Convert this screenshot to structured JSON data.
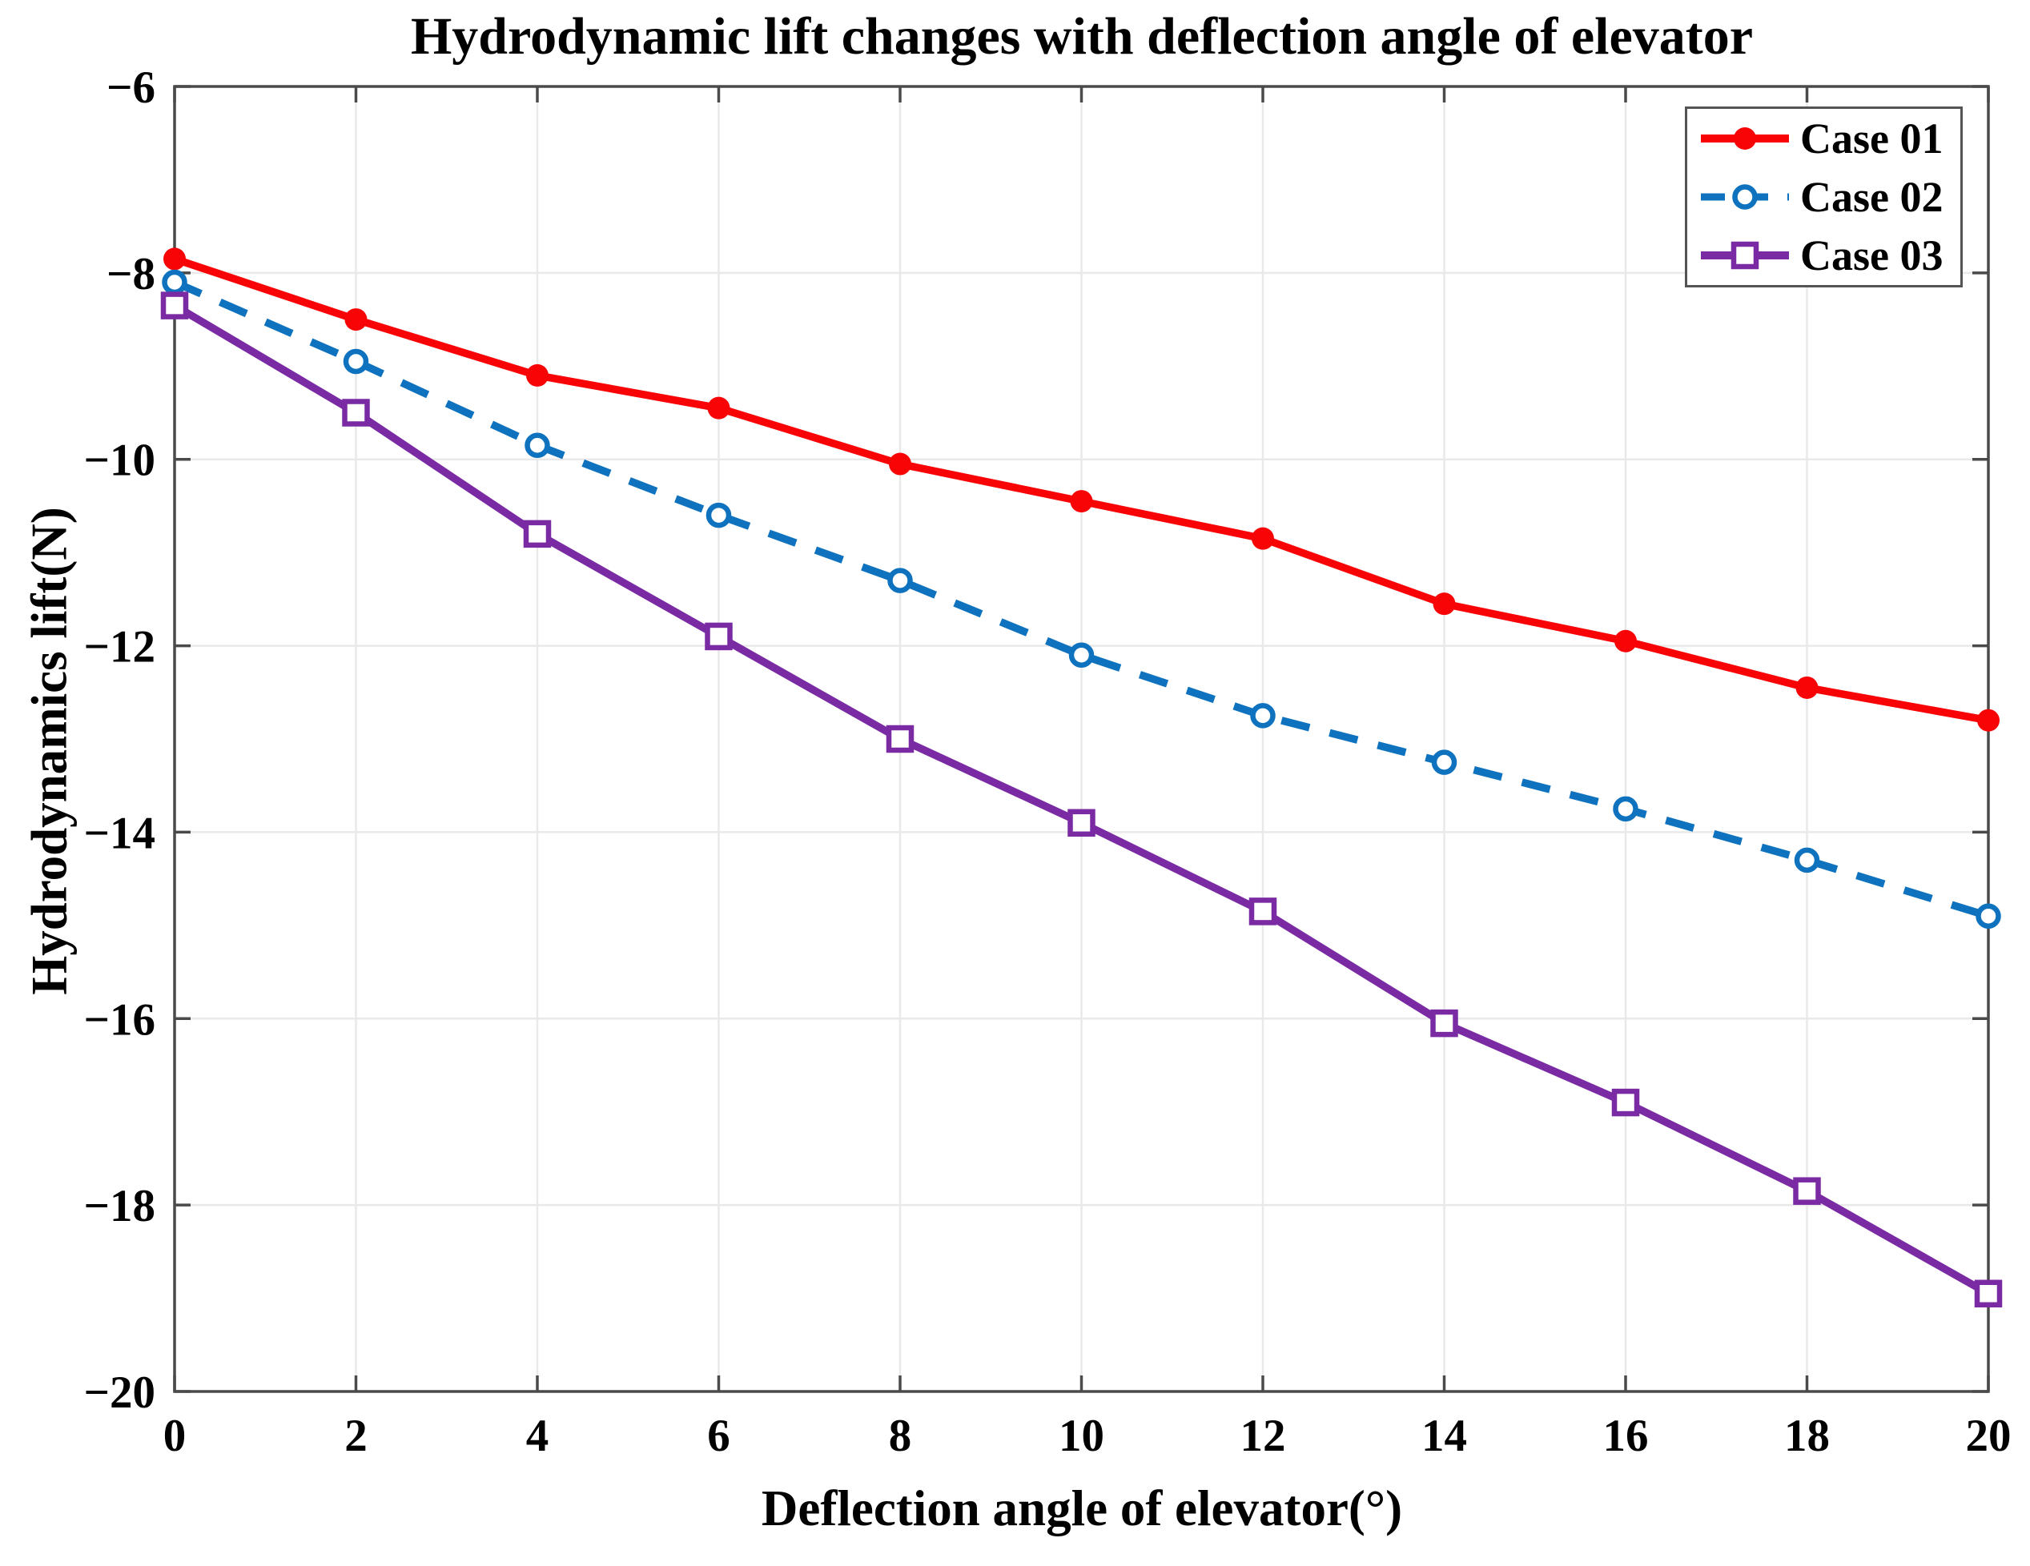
{
  "chart_data": {
    "type": "line",
    "title": "Hydrodynamic lift changes with deflection angle of elevator",
    "xlabel": "Deflection angle of elevator(°)",
    "ylabel": "Hydrodynamics lift(N)",
    "xlim": [
      0,
      20
    ],
    "ylim": [
      -20,
      -6
    ],
    "xticks": [
      0,
      2,
      4,
      6,
      8,
      10,
      12,
      14,
      16,
      18,
      20
    ],
    "yticks": [
      -6,
      -8,
      -10,
      -12,
      -14,
      -16,
      -18,
      -20
    ],
    "grid": true,
    "legend_position": "top-right",
    "x": [
      0,
      2,
      4,
      6,
      8,
      10,
      12,
      14,
      16,
      18,
      20
    ],
    "series": [
      {
        "name": "Case 01",
        "color": "#f80306",
        "line_style": "solid",
        "marker": "filled-circle",
        "values": [
          -7.85,
          -8.5,
          -9.1,
          -9.45,
          -10.05,
          -10.45,
          -10.85,
          -11.55,
          -11.95,
          -12.45,
          -12.8
        ]
      },
      {
        "name": "Case 02",
        "color": "#0e72be",
        "line_style": "dashed",
        "marker": "open-circle",
        "values": [
          -8.1,
          -8.95,
          -9.85,
          -10.6,
          -11.3,
          -12.1,
          -12.75,
          -13.25,
          -13.75,
          -14.3,
          -14.9
        ]
      },
      {
        "name": "Case 03",
        "color": "#7a2ba4",
        "line_style": "solid",
        "marker": "open-square",
        "values": [
          -8.35,
          -9.5,
          -10.8,
          -11.9,
          -13.0,
          -13.9,
          -14.85,
          -16.05,
          -16.9,
          -17.85,
          -18.95
        ]
      }
    ],
    "colors": {
      "grid": "#e9e9e9",
      "axis": "#4a4a4a",
      "text": "#000000",
      "background": "#ffffff"
    }
  }
}
